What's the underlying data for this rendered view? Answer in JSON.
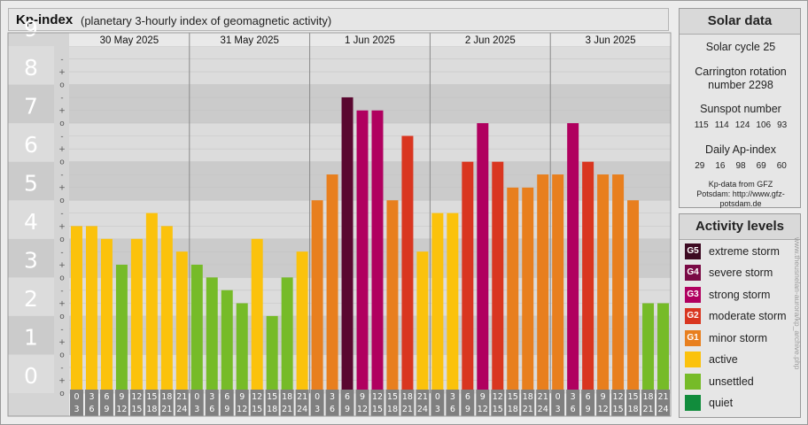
{
  "header": {
    "title": "Kp-index",
    "subtitle": "(planetary 3-hourly index of geomagnetic activity)"
  },
  "solar": {
    "title": "Solar data",
    "cycle": "Solar cycle 25",
    "carrington": "Carrington rotation number 2298",
    "sunspot_label": "Sunspot number",
    "sunspot_values": [
      "115",
      "114",
      "124",
      "106",
      "93"
    ],
    "ap_label": "Daily Ap-index",
    "ap_values": [
      "29",
      "16",
      "98",
      "69",
      "60"
    ],
    "source": "Kp-data from GFZ Potsdam: http://www.gfz-potsdam.de"
  },
  "legend": {
    "title": "Activity levels",
    "items": [
      {
        "code": "G5",
        "label": "extreme storm",
        "color": "#3d0a22"
      },
      {
        "code": "G4",
        "label": "severe storm",
        "color": "#7a0a45"
      },
      {
        "code": "G3",
        "label": "strong storm",
        "color": "#b0005f"
      },
      {
        "code": "G2",
        "label": "moderate storm",
        "color": "#d93620"
      },
      {
        "code": "G1",
        "label": "minor storm",
        "color": "#e87f1e"
      },
      {
        "code": "",
        "label": "active",
        "color": "#fbc20c"
      },
      {
        "code": "",
        "label": "unsettled",
        "color": "#76bb28"
      },
      {
        "code": "",
        "label": "quiet",
        "color": "#118c3c"
      }
    ]
  },
  "credit": "www.theusnelan-aurora/kp_archive.php",
  "chart_data": {
    "type": "bar",
    "days": [
      "30 May 2025",
      "31 May 2025",
      "1 Jun 2025",
      "2 Jun 2025",
      "3 Jun 2025"
    ],
    "interval_starts": [
      "0",
      "3",
      "6",
      "9",
      "12",
      "15",
      "18",
      "21"
    ],
    "interval_ends": [
      "3",
      "6",
      "9",
      "12",
      "15",
      "18",
      "21",
      "24"
    ],
    "y_ticks": [
      "0",
      "1",
      "2",
      "3",
      "4",
      "5",
      "6",
      "7",
      "8",
      "9"
    ],
    "minor_ticks": [
      "o",
      "+",
      "-"
    ],
    "ylim": [
      0,
      9
    ],
    "values": [
      4.33,
      4.33,
      4.0,
      3.33,
      4.0,
      4.67,
      4.33,
      3.67,
      3.33,
      3.0,
      2.67,
      2.33,
      4.0,
      2.0,
      3.0,
      3.67,
      5.0,
      5.67,
      7.67,
      7.33,
      7.33,
      5.0,
      6.67,
      3.67,
      4.67,
      4.67,
      6.0,
      7.0,
      6.0,
      5.33,
      5.33,
      5.67,
      5.67,
      7.0,
      6.0,
      5.67,
      5.67,
      5.0,
      2.33,
      2.33
    ]
  }
}
